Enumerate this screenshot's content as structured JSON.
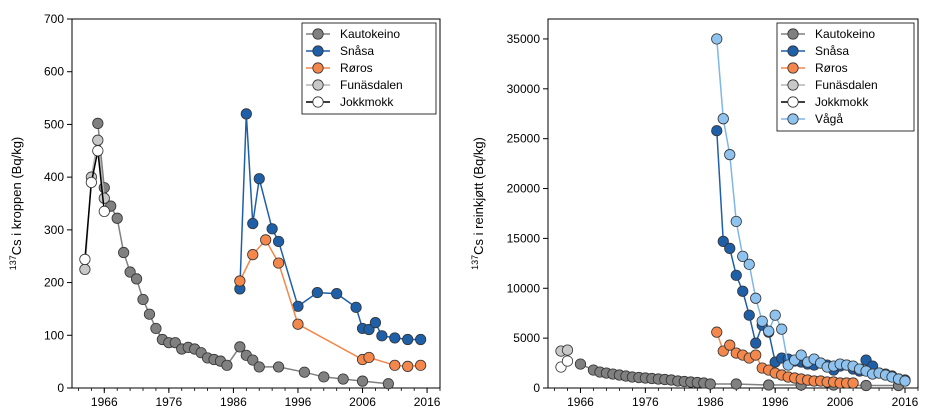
{
  "chart_data": [
    {
      "type": "line",
      "ylabel": "Cs i kroppen (Bq/kg)",
      "ylabel_sup": "137",
      "xlabel": "",
      "xlim": [
        1961,
        2018
      ],
      "ylim": [
        0,
        700
      ],
      "xticks": [
        1966,
        1976,
        1986,
        1996,
        2006,
        2016
      ],
      "yticks": [
        0,
        100,
        200,
        300,
        400,
        500,
        600,
        700
      ],
      "grid": false,
      "legend_position": "top-right",
      "series": [
        {
          "name": "Kautokeino",
          "color": "#7f7f7f",
          "marker_fill": "#808080",
          "line_color": "#808080",
          "x": [
            1965,
            1966,
            1967,
            1968,
            1969,
            1970,
            1971,
            1972,
            1973,
            1974,
            1975,
            1976,
            1977,
            1978,
            1979,
            1980,
            1981,
            1982,
            1983,
            1984,
            1985,
            1987,
            1988,
            1989,
            1990,
            1993,
            1997,
            2000,
            2003,
            2006,
            2010
          ],
          "y": [
            502,
            380,
            345,
            322,
            257,
            220,
            207,
            168,
            140,
            113,
            92,
            86,
            86,
            74,
            77,
            74,
            67,
            57,
            54,
            51,
            43,
            78,
            62,
            53,
            40,
            40,
            30,
            21,
            17,
            13,
            8
          ]
        },
        {
          "name": "Snåsa",
          "color": "#1f5fa8",
          "marker_fill": "#1f5fa8",
          "line_color": "#1f5fa8",
          "x": [
            1987,
            1988,
            1989,
            1990,
            1992,
            1993,
            1996,
            1999,
            2002,
            2005,
            2006,
            2007,
            2008,
            2009,
            2011,
            2013,
            2015
          ],
          "y": [
            188,
            520,
            312,
            397,
            302,
            278,
            155,
            181,
            179,
            153,
            113,
            111,
            124,
            99,
            95,
            92,
            92
          ]
        },
        {
          "name": "Røros",
          "color": "#f4874b",
          "marker_fill": "#f4874b",
          "line_color": "#f4874b",
          "x": [
            1987,
            1989,
            1991,
            1993,
            1996,
            2006,
            2007,
            2011,
            2013,
            2015
          ],
          "y": [
            203,
            253,
            281,
            237,
            121,
            54,
            58,
            43,
            41,
            43
          ]
        },
        {
          "name": "Funäsdalen",
          "color": "#b5b5b5",
          "marker_fill": "#c8c8c8",
          "line_color": "#b5b5b5",
          "x": [
            1963,
            1964,
            1965,
            1966
          ],
          "y": [
            225,
            400,
            470,
            360
          ]
        },
        {
          "name": "Jokkmokk",
          "color": "#000000",
          "marker_fill": "#ffffff",
          "line_color": "#000000",
          "x": [
            1963,
            1964,
            1965,
            1966
          ],
          "y": [
            244,
            390,
            450,
            335
          ]
        }
      ]
    },
    {
      "type": "line",
      "ylabel": "Cs i reinkjøtt (Bq/kg)",
      "ylabel_sup": "137",
      "xlabel": "",
      "xlim": [
        1961,
        2018
      ],
      "ylim": [
        0,
        37000
      ],
      "xticks": [
        1966,
        1976,
        1986,
        1996,
        2006,
        2016
      ],
      "yticks": [
        0,
        5000,
        10000,
        15000,
        20000,
        25000,
        30000,
        35000
      ],
      "grid": false,
      "legend_position": "top-right",
      "series": [
        {
          "name": "Kautokeino",
          "color": "#7f7f7f",
          "marker_fill": "#808080",
          "line_color": "#808080",
          "x": [
            1966,
            1968,
            1969,
            1970,
            1971,
            1972,
            1973,
            1974,
            1975,
            1976,
            1977,
            1978,
            1979,
            1980,
            1981,
            1982,
            1983,
            1984,
            1985,
            1986,
            1990,
            1995,
            2000,
            2005,
            2010,
            2015
          ],
          "y": [
            2400,
            1800,
            1600,
            1500,
            1400,
            1300,
            1200,
            1100,
            1050,
            1000,
            950,
            900,
            850,
            800,
            700,
            650,
            600,
            550,
            500,
            400,
            400,
            300,
            300,
            300,
            250,
            250
          ]
        },
        {
          "name": "Snåsa",
          "color": "#1f5fa8",
          "marker_fill": "#1f5fa8",
          "line_color": "#1f5fa8",
          "x": [
            1987,
            1988,
            1989,
            1990,
            1991,
            1992,
            1993,
            1994,
            1995,
            1996,
            1997,
            1998,
            1999,
            2000,
            2001,
            2002,
            2003,
            2004,
            2005,
            2006,
            2007,
            2008,
            2009,
            2010,
            2011,
            2012,
            2013,
            2014,
            2015,
            2016
          ],
          "y": [
            25800,
            14700,
            14000,
            11300,
            9700,
            7300,
            4500,
            6300,
            5600,
            2600,
            3000,
            2900,
            2700,
            2600,
            2400,
            2300,
            2500,
            2300,
            1800,
            2200,
            2300,
            1900,
            1700,
            2800,
            2200,
            1500,
            1400,
            1200,
            900,
            800
          ]
        },
        {
          "name": "Røros",
          "color": "#f4874b",
          "marker_fill": "#f4874b",
          "line_color": "#f4874b",
          "x": [
            1987,
            1988,
            1989,
            1990,
            1991,
            1992,
            1993,
            1994,
            1995,
            1996,
            1997,
            1998,
            1999,
            2000,
            2001,
            2002,
            2003,
            2004,
            2005,
            2006,
            2007,
            2008
          ],
          "y": [
            5600,
            3700,
            4300,
            3500,
            3300,
            3000,
            3300,
            2000,
            1800,
            1500,
            1300,
            1100,
            1000,
            900,
            800,
            700,
            700,
            600,
            600,
            500,
            500,
            500
          ]
        },
        {
          "name": "Funäsdalen",
          "color": "#b5b5b5",
          "marker_fill": "#c8c8c8",
          "line_color": "#b5b5b5",
          "x": [
            1963,
            1964
          ],
          "y": [
            3700,
            3800
          ]
        },
        {
          "name": "Jokkmokk",
          "color": "#000000",
          "marker_fill": "#ffffff",
          "line_color": "#000000",
          "x": [
            1963,
            1964
          ],
          "y": [
            2100,
            2700
          ]
        },
        {
          "name": "Vågå",
          "color": "#7fb6e8",
          "marker_fill": "#8fc3ef",
          "line_color": "#7fb6e8",
          "x": [
            1987,
            1988,
            1989,
            1990,
            1991,
            1992,
            1993,
            1994,
            1995,
            1996,
            1997,
            1998,
            1999,
            2000,
            2001,
            2002,
            2003,
            2004,
            2005,
            2006,
            2007,
            2008,
            2009,
            2010,
            2011,
            2012,
            2013,
            2014,
            2015,
            2016
          ],
          "y": [
            35000,
            27000,
            23400,
            16700,
            13200,
            12400,
            9000,
            6700,
            5700,
            7300,
            5900,
            2300,
            2800,
            3300,
            2600,
            2900,
            2500,
            2100,
            2200,
            2400,
            2300,
            2200,
            1900,
            1700,
            1400,
            1500,
            1300,
            1100,
            900,
            700
          ]
        }
      ]
    }
  ]
}
